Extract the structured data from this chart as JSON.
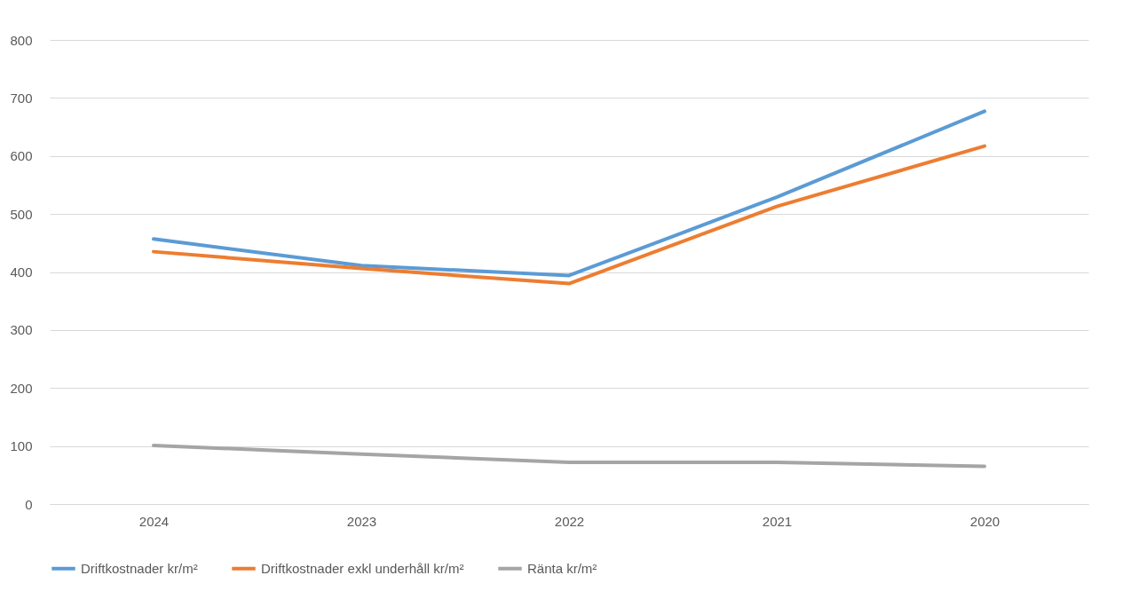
{
  "chart_data": {
    "type": "line",
    "categories": [
      "2024",
      "2023",
      "2022",
      "2021",
      "2020"
    ],
    "series": [
      {
        "name": "Driftkostnader kr/m²",
        "color": "#5b9bd5",
        "values": [
          457,
          411,
          394,
          529,
          677
        ]
      },
      {
        "name": "Driftkostnader exkl underhåll kr/m²",
        "color": "#ed7d31",
        "values": [
          435,
          406,
          380,
          513,
          617
        ]
      },
      {
        "name": "Ränta kr/m²",
        "color": "#a5a5a5",
        "values": [
          101,
          86,
          72,
          72,
          65
        ]
      }
    ],
    "ylim": [
      0,
      800
    ],
    "yticks": [
      0,
      100,
      200,
      300,
      400,
      500,
      600,
      700,
      800
    ],
    "grid": "y",
    "legend": "bottom",
    "marker": "none",
    "line_style": "solid"
  }
}
